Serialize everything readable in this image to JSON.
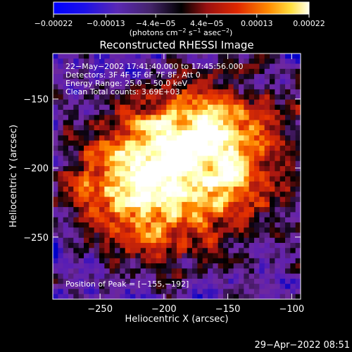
{
  "chart_data": {
    "type": "heatmap",
    "title": "Reconstructed RHESSI Image",
    "xlabel": "Heliocentric X (arcsec)",
    "ylabel": "Heliocentric Y (arcsec)",
    "xlim": [
      -287,
      -93
    ],
    "ylim": [
      -295,
      -117
    ],
    "x_ticks": [
      {
        "value": -250,
        "label": "−250"
      },
      {
        "value": -200,
        "label": "−200"
      },
      {
        "value": -150,
        "label": "−150"
      },
      {
        "value": -100,
        "label": "−100"
      }
    ],
    "y_ticks": [
      {
        "value": -150,
        "label": "−150"
      },
      {
        "value": -200,
        "label": "−200"
      },
      {
        "value": -250,
        "label": "−250"
      }
    ],
    "colorbar": {
      "range": [
        -0.00022,
        0.00022
      ],
      "tick_labels": [
        "−0.00022",
        "−0.00013",
        "−4.4e−05",
        "4.4e−05",
        "0.00013",
        "0.00022"
      ],
      "tick_values": [
        -0.00022,
        -0.00013,
        -4.4e-05,
        4.4e-05,
        0.00013,
        0.00022
      ],
      "unit_main": "(photons cm",
      "unit_exp1": "−2",
      "unit_mid": " s",
      "unit_exp2": "−1",
      "unit_end": " asec",
      "unit_exp3": "−2",
      "unit_close": ")"
    },
    "annotations": [
      "22−May−2002 17:41:40.000 to 17:45:56.000",
      "Detectors: 3F 4F 5F 6F 7F 8F, Att 0",
      "Energy Range: 25.0 − 50.0 keV",
      "Clean    Total counts: 3.69E+03"
    ],
    "peak_label": "Position of Peak = [−155,−192]",
    "peak": [
      -155,
      -192
    ],
    "grid": false,
    "colormap": [
      "#0000c8",
      "#5a1eb4",
      "#6e28a0",
      "#000000",
      "#a01414",
      "#e63200",
      "#ff8c00",
      "#ffff96",
      "#ffffff"
    ]
  },
  "footer": {
    "timestamp": "29−Apr−2022 08:51"
  }
}
